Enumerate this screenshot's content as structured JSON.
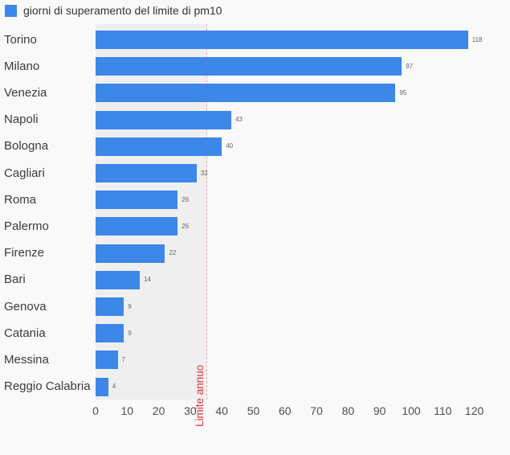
{
  "legend": {
    "label": "giorni di superamento del limite di pm10"
  },
  "chart_data": {
    "type": "bar",
    "orientation": "horizontal",
    "title": "giorni di superamento del limite di pm10",
    "categories": [
      "Torino",
      "Milano",
      "Venezia",
      "Napoli",
      "Bologna",
      "Cagliari",
      "Roma",
      "Palermo",
      "Firenze",
      "Bari",
      "Genova",
      "Catania",
      "Messina",
      "Reggio Calabria"
    ],
    "values": [
      118,
      97,
      95,
      43,
      40,
      32,
      26,
      26,
      22,
      14,
      9,
      9,
      7,
      4
    ],
    "xlabel": "",
    "ylabel": "",
    "xlim": [
      0,
      120
    ],
    "x_ticks": [
      0,
      10,
      20,
      30,
      40,
      50,
      60,
      70,
      80,
      90,
      100,
      110,
      120
    ],
    "grid": false,
    "legend_position": "top-left",
    "value_labels_shown": true,
    "reference_line": {
      "value": 35,
      "label": "Limite annuo"
    },
    "shaded_region": {
      "from": 0,
      "to": 35
    }
  },
  "colors": {
    "bar": "#3c87e8",
    "background": "#f9f9f9",
    "shaded_band": "#efeff0",
    "reference_line": "#f0a9ad",
    "reference_label": "#e0363f",
    "category_label": "#3b3b3b",
    "tick_label": "#4f4f4f",
    "value_label": "#666666"
  }
}
